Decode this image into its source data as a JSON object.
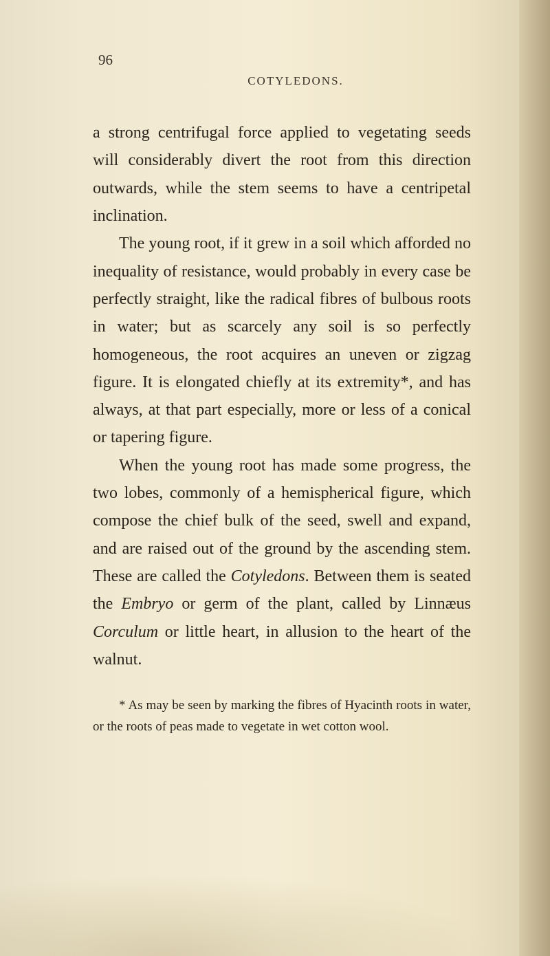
{
  "page": {
    "number": "96",
    "header": "COTYLEDONS.",
    "paragraphs": [
      {
        "indent": false,
        "text": "a strong centrifugal force applied to vegetating seeds will considerably divert the root from this direction outwards, while the stem seems to have a centripetal inclination."
      },
      {
        "indent": true,
        "text": "The young root, if it grew in a soil which afforded no inequality of resistance, would probably in every case be perfectly straight, like the radical fibres of bulbous roots in water; but as scarcely any soil is so perfectly homogeneous, the root acquires an uneven or zigzag figure. It is elongated chiefly at its extremity*, and has always, at that part especially, more or less of a conical or tapering figure."
      },
      {
        "indent": true,
        "text_parts": [
          {
            "text": "When the young root has made some progress, the two lobes, commonly of a hemisphe­rical figure, which compose the chief bulk of the seed, swell and expand, and are raised out of the ground by the ascending stem. These are called the ",
            "italic": false
          },
          {
            "text": "Cotyledons",
            "italic": true
          },
          {
            "text": ". Between them is seated the ",
            "italic": false
          },
          {
            "text": "Embryo",
            "italic": true
          },
          {
            "text": " or germ of the plant, called by Linnæus ",
            "italic": false
          },
          {
            "text": "Corculum",
            "italic": true
          },
          {
            "text": " or little heart, in allusion to the heart of the walnut.",
            "italic": false
          }
        ]
      }
    ],
    "footnote": {
      "marker": "*",
      "text": "As may be seen by marking the fibres of Hyacinth roots in water, or the roots of peas made to vegetate in wet cotton wool."
    },
    "colors": {
      "text": "#2a241c",
      "header": "#3a3228",
      "background_start": "#e8e0c8",
      "background_mid": "#f4ecd4",
      "background_end": "#d8ceb0"
    },
    "typography": {
      "body_fontsize": 24,
      "header_fontsize": 17,
      "pagenum_fontsize": 21,
      "footnote_fontsize": 19,
      "line_height": 1.68,
      "font_family": "Georgia, Times New Roman, serif"
    }
  }
}
